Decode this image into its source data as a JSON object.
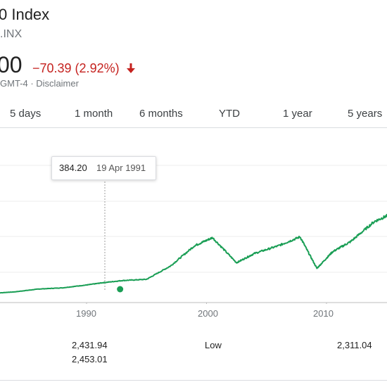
{
  "header": {
    "title": "0 Index",
    "ticker": ".INX",
    "price": "00",
    "change": "−70.39 (2.92%)",
    "meta": "GMT-4 · Disclaimer",
    "change_color": "#c5221f"
  },
  "tabs": [
    "5 days",
    "1 month",
    "6 months",
    "YTD",
    "1 year",
    "5 years"
  ],
  "tooltip": {
    "value": "384.20",
    "date": "19 Apr 1991"
  },
  "chart_data": {
    "type": "line",
    "x_ticks": [
      "1990",
      "2000",
      "2010"
    ],
    "series": [
      {
        "values": [
          [
            1982.0,
            120
          ],
          [
            1984,
            160
          ],
          [
            1986,
            230
          ],
          [
            1988,
            260
          ],
          [
            1990,
            330
          ],
          [
            1991.3,
            384.2
          ],
          [
            1993,
            440
          ],
          [
            1995,
            470
          ],
          [
            1997,
            800
          ],
          [
            1999,
            1300
          ],
          [
            2000.5,
            1500
          ],
          [
            2002.5,
            880
          ],
          [
            2004,
            1110
          ],
          [
            2006,
            1300
          ],
          [
            2007.8,
            1520
          ],
          [
            2009.2,
            740
          ],
          [
            2010.5,
            1150
          ],
          [
            2012,
            1400
          ],
          [
            2014,
            1900
          ],
          [
            2015.5,
            2100
          ]
        ]
      }
    ],
    "line_color": "#1a9e55",
    "grid": true
  },
  "stats": {
    "col1": [
      "2,431.94",
      "2,453.01"
    ],
    "col2": [
      "Low"
    ],
    "col3": [
      "2,311.04"
    ]
  }
}
